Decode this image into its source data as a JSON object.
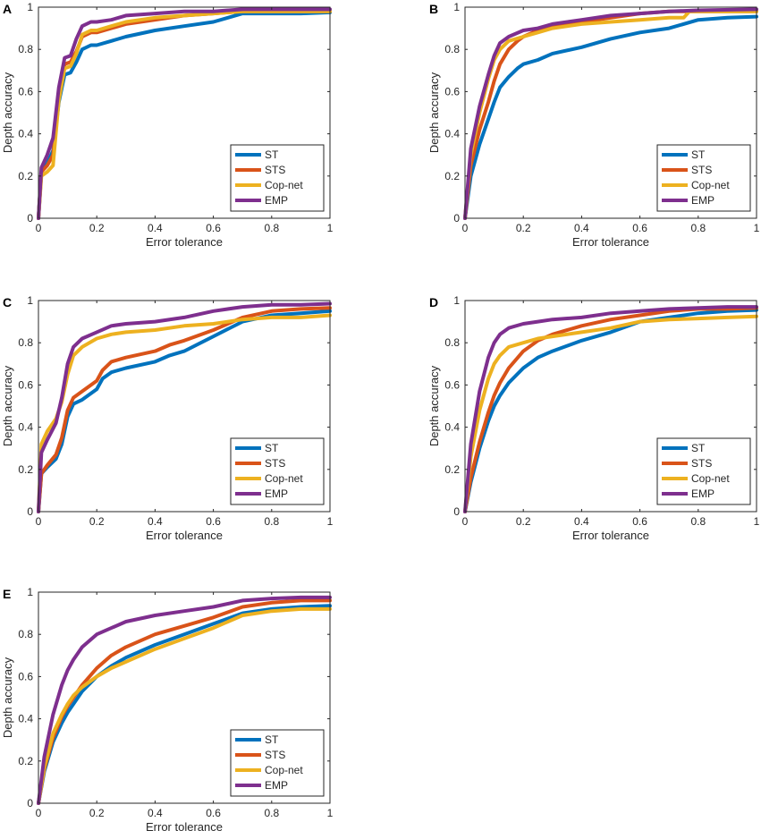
{
  "figure": {
    "description_labels": [
      "A",
      "B",
      "C",
      "D",
      "E"
    ]
  },
  "chart_data": [
    {
      "panel": "A",
      "type": "line",
      "xlabel": "Error tolerance",
      "ylabel": "Depth accuracy",
      "xlim": [
        0,
        1
      ],
      "ylim": [
        0,
        1
      ],
      "xticks": [
        "0",
        "0.2",
        "0.4",
        "0.6",
        "0.8",
        "1"
      ],
      "yticks": [
        "0",
        "0.2",
        "0.4",
        "0.6",
        "0.8",
        "1"
      ],
      "legend_position": "bottom-right",
      "series": [
        {
          "name": "ST",
          "color": "#0072BD",
          "x": [
            0,
            0.01,
            0.03,
            0.05,
            0.07,
            0.09,
            0.11,
            0.13,
            0.15,
            0.18,
            0.2,
            0.25,
            0.3,
            0.4,
            0.5,
            0.6,
            0.65,
            0.7,
            0.8,
            0.9,
            1
          ],
          "y": [
            0,
            0.22,
            0.26,
            0.32,
            0.55,
            0.68,
            0.69,
            0.74,
            0.8,
            0.82,
            0.82,
            0.84,
            0.86,
            0.89,
            0.91,
            0.93,
            0.95,
            0.97,
            0.97,
            0.97,
            0.975
          ]
        },
        {
          "name": "STS",
          "color": "#D95319",
          "x": [
            0,
            0.01,
            0.03,
            0.05,
            0.07,
            0.09,
            0.11,
            0.13,
            0.15,
            0.18,
            0.2,
            0.25,
            0.3,
            0.4,
            0.5,
            0.6,
            0.7,
            0.8,
            1
          ],
          "y": [
            0,
            0.22,
            0.25,
            0.3,
            0.58,
            0.73,
            0.74,
            0.79,
            0.86,
            0.88,
            0.88,
            0.9,
            0.92,
            0.94,
            0.96,
            0.97,
            0.98,
            0.98,
            0.98
          ]
        },
        {
          "name": "Cop-net",
          "color": "#EDB120",
          "x": [
            0,
            0.01,
            0.03,
            0.05,
            0.07,
            0.09,
            0.11,
            0.13,
            0.15,
            0.18,
            0.2,
            0.25,
            0.3,
            0.4,
            0.5,
            0.6,
            0.7,
            0.8,
            1
          ],
          "y": [
            0,
            0.2,
            0.22,
            0.25,
            0.56,
            0.71,
            0.72,
            0.78,
            0.87,
            0.89,
            0.89,
            0.91,
            0.93,
            0.95,
            0.96,
            0.97,
            0.98,
            0.98,
            0.98
          ]
        },
        {
          "name": "EMP",
          "color": "#7E2F8E",
          "x": [
            0,
            0.01,
            0.03,
            0.05,
            0.07,
            0.09,
            0.11,
            0.13,
            0.15,
            0.18,
            0.2,
            0.25,
            0.3,
            0.4,
            0.5,
            0.6,
            0.7,
            0.8,
            1
          ],
          "y": [
            0,
            0.24,
            0.3,
            0.38,
            0.62,
            0.76,
            0.77,
            0.85,
            0.91,
            0.93,
            0.93,
            0.94,
            0.96,
            0.97,
            0.98,
            0.98,
            0.99,
            0.99,
            0.99
          ]
        }
      ]
    },
    {
      "panel": "B",
      "type": "line",
      "xlabel": "Error tolerance",
      "ylabel": "Depth accuracy",
      "xlim": [
        0,
        1
      ],
      "ylim": [
        0,
        1
      ],
      "xticks": [
        "0",
        "0.2",
        "0.4",
        "0.6",
        "0.8",
        "1"
      ],
      "yticks": [
        "0",
        "0.2",
        "0.4",
        "0.6",
        "0.8",
        "1"
      ],
      "legend_position": "bottom-right",
      "series": [
        {
          "name": "ST",
          "color": "#0072BD",
          "x": [
            0,
            0.02,
            0.05,
            0.08,
            0.1,
            0.12,
            0.15,
            0.18,
            0.2,
            0.25,
            0.3,
            0.4,
            0.5,
            0.6,
            0.7,
            0.8,
            0.9,
            1
          ],
          "y": [
            0,
            0.2,
            0.35,
            0.47,
            0.55,
            0.62,
            0.67,
            0.71,
            0.73,
            0.75,
            0.78,
            0.81,
            0.85,
            0.88,
            0.9,
            0.94,
            0.95,
            0.955
          ]
        },
        {
          "name": "STS",
          "color": "#D95319",
          "x": [
            0,
            0.02,
            0.05,
            0.08,
            0.1,
            0.12,
            0.15,
            0.18,
            0.2,
            0.25,
            0.3,
            0.4,
            0.5,
            0.6,
            0.7,
            0.8,
            1
          ],
          "y": [
            0,
            0.25,
            0.42,
            0.55,
            0.65,
            0.73,
            0.8,
            0.84,
            0.86,
            0.89,
            0.91,
            0.93,
            0.95,
            0.97,
            0.98,
            0.98,
            0.98
          ]
        },
        {
          "name": "Cop-net",
          "color": "#EDB120",
          "x": [
            0,
            0.02,
            0.05,
            0.08,
            0.1,
            0.12,
            0.15,
            0.2,
            0.25,
            0.3,
            0.4,
            0.5,
            0.6,
            0.7,
            0.75,
            0.77,
            0.8,
            1
          ],
          "y": [
            0,
            0.3,
            0.5,
            0.66,
            0.75,
            0.8,
            0.84,
            0.86,
            0.88,
            0.9,
            0.92,
            0.93,
            0.94,
            0.95,
            0.95,
            0.98,
            0.98,
            0.98
          ]
        },
        {
          "name": "EMP",
          "color": "#7E2F8E",
          "x": [
            0,
            0.02,
            0.05,
            0.08,
            0.1,
            0.12,
            0.15,
            0.2,
            0.25,
            0.3,
            0.4,
            0.5,
            0.6,
            0.7,
            0.8,
            1
          ],
          "y": [
            0,
            0.33,
            0.53,
            0.68,
            0.77,
            0.83,
            0.86,
            0.89,
            0.9,
            0.92,
            0.94,
            0.96,
            0.97,
            0.98,
            0.985,
            0.99
          ]
        }
      ]
    },
    {
      "panel": "C",
      "type": "line",
      "xlabel": "Error tolerance",
      "ylabel": "Depth accuracy",
      "xlim": [
        0,
        1
      ],
      "ylim": [
        0,
        1
      ],
      "xticks": [
        "0",
        "0.2",
        "0.4",
        "0.6",
        "0.8",
        "1"
      ],
      "yticks": [
        "0",
        "0.2",
        "0.4",
        "0.6",
        "0.8",
        "1"
      ],
      "legend_position": "bottom-right",
      "series": [
        {
          "name": "ST",
          "color": "#0072BD",
          "x": [
            0,
            0.01,
            0.03,
            0.06,
            0.08,
            0.1,
            0.12,
            0.15,
            0.2,
            0.22,
            0.25,
            0.3,
            0.4,
            0.45,
            0.5,
            0.6,
            0.7,
            0.8,
            0.9,
            1
          ],
          "y": [
            0,
            0.18,
            0.21,
            0.25,
            0.32,
            0.45,
            0.51,
            0.53,
            0.58,
            0.63,
            0.66,
            0.68,
            0.71,
            0.74,
            0.76,
            0.83,
            0.9,
            0.93,
            0.94,
            0.95
          ]
        },
        {
          "name": "STS",
          "color": "#D95319",
          "x": [
            0,
            0.01,
            0.03,
            0.06,
            0.08,
            0.1,
            0.12,
            0.15,
            0.2,
            0.22,
            0.25,
            0.3,
            0.4,
            0.45,
            0.5,
            0.6,
            0.7,
            0.8,
            0.9,
            1
          ],
          "y": [
            0,
            0.18,
            0.22,
            0.27,
            0.35,
            0.48,
            0.54,
            0.57,
            0.62,
            0.67,
            0.71,
            0.73,
            0.76,
            0.79,
            0.81,
            0.86,
            0.92,
            0.95,
            0.96,
            0.965
          ]
        },
        {
          "name": "Cop-net",
          "color": "#EDB120",
          "x": [
            0,
            0.01,
            0.03,
            0.06,
            0.08,
            0.1,
            0.12,
            0.15,
            0.2,
            0.25,
            0.3,
            0.4,
            0.5,
            0.6,
            0.7,
            0.8,
            0.9,
            1
          ],
          "y": [
            0,
            0.32,
            0.38,
            0.44,
            0.52,
            0.65,
            0.74,
            0.78,
            0.82,
            0.84,
            0.85,
            0.86,
            0.88,
            0.89,
            0.91,
            0.92,
            0.92,
            0.93
          ]
        },
        {
          "name": "EMP",
          "color": "#7E2F8E",
          "x": [
            0,
            0.01,
            0.03,
            0.06,
            0.08,
            0.1,
            0.12,
            0.15,
            0.2,
            0.25,
            0.3,
            0.4,
            0.5,
            0.6,
            0.7,
            0.8,
            0.9,
            1
          ],
          "y": [
            0,
            0.28,
            0.34,
            0.42,
            0.54,
            0.7,
            0.78,
            0.82,
            0.85,
            0.88,
            0.89,
            0.9,
            0.92,
            0.95,
            0.97,
            0.98,
            0.98,
            0.985
          ]
        }
      ]
    },
    {
      "panel": "D",
      "type": "line",
      "xlabel": "Error tolerance",
      "ylabel": "Depth accuracy",
      "xlim": [
        0,
        1
      ],
      "ylim": [
        0,
        1
      ],
      "xticks": [
        "0",
        "0.2",
        "0.4",
        "0.6",
        "0.8",
        "1"
      ],
      "yticks": [
        "0",
        "0.2",
        "0.4",
        "0.6",
        "0.8",
        "1"
      ],
      "legend_position": "bottom-right",
      "series": [
        {
          "name": "ST",
          "color": "#0072BD",
          "x": [
            0,
            0.02,
            0.05,
            0.08,
            0.1,
            0.12,
            0.15,
            0.2,
            0.25,
            0.3,
            0.4,
            0.5,
            0.6,
            0.7,
            0.8,
            0.9,
            1
          ],
          "y": [
            0,
            0.14,
            0.3,
            0.43,
            0.5,
            0.55,
            0.61,
            0.68,
            0.73,
            0.76,
            0.81,
            0.85,
            0.9,
            0.92,
            0.94,
            0.95,
            0.955
          ]
        },
        {
          "name": "STS",
          "color": "#D95319",
          "x": [
            0,
            0.02,
            0.05,
            0.08,
            0.1,
            0.12,
            0.15,
            0.2,
            0.25,
            0.3,
            0.4,
            0.5,
            0.6,
            0.7,
            0.8,
            0.9,
            1
          ],
          "y": [
            0,
            0.16,
            0.33,
            0.47,
            0.55,
            0.61,
            0.68,
            0.76,
            0.81,
            0.84,
            0.88,
            0.91,
            0.93,
            0.95,
            0.96,
            0.96,
            0.965
          ]
        },
        {
          "name": "Cop-net",
          "color": "#EDB120",
          "x": [
            0,
            0.02,
            0.05,
            0.08,
            0.1,
            0.12,
            0.15,
            0.2,
            0.25,
            0.3,
            0.4,
            0.5,
            0.6,
            0.7,
            0.8,
            0.9,
            1
          ],
          "y": [
            0,
            0.26,
            0.48,
            0.63,
            0.7,
            0.74,
            0.78,
            0.8,
            0.82,
            0.83,
            0.85,
            0.87,
            0.9,
            0.91,
            0.915,
            0.92,
            0.925
          ]
        },
        {
          "name": "EMP",
          "color": "#7E2F8E",
          "x": [
            0,
            0.02,
            0.05,
            0.08,
            0.1,
            0.12,
            0.15,
            0.2,
            0.25,
            0.3,
            0.4,
            0.5,
            0.6,
            0.7,
            0.8,
            0.9,
            1
          ],
          "y": [
            0,
            0.32,
            0.57,
            0.73,
            0.8,
            0.84,
            0.87,
            0.89,
            0.9,
            0.91,
            0.92,
            0.94,
            0.95,
            0.96,
            0.965,
            0.97,
            0.97
          ]
        }
      ]
    },
    {
      "panel": "E",
      "type": "line",
      "xlabel": "Error tolerance",
      "ylabel": "Depth accuracy",
      "xlim": [
        0,
        1
      ],
      "ylim": [
        0,
        1
      ],
      "xticks": [
        "0",
        "0.2",
        "0.4",
        "0.6",
        "0.8",
        "1"
      ],
      "yticks": [
        "0",
        "0.2",
        "0.4",
        "0.6",
        "0.8",
        "1"
      ],
      "legend_position": "bottom-right",
      "series": [
        {
          "name": "ST",
          "color": "#0072BD",
          "x": [
            0,
            0.02,
            0.05,
            0.08,
            0.1,
            0.12,
            0.15,
            0.2,
            0.25,
            0.3,
            0.4,
            0.5,
            0.6,
            0.7,
            0.8,
            0.9,
            1
          ],
          "y": [
            0,
            0.15,
            0.29,
            0.38,
            0.43,
            0.47,
            0.53,
            0.6,
            0.65,
            0.69,
            0.75,
            0.8,
            0.85,
            0.9,
            0.92,
            0.93,
            0.935
          ]
        },
        {
          "name": "STS",
          "color": "#D95319",
          "x": [
            0,
            0.02,
            0.05,
            0.08,
            0.1,
            0.12,
            0.15,
            0.2,
            0.25,
            0.3,
            0.4,
            0.5,
            0.6,
            0.7,
            0.8,
            0.9,
            1
          ],
          "y": [
            0,
            0.16,
            0.31,
            0.41,
            0.46,
            0.5,
            0.56,
            0.64,
            0.7,
            0.74,
            0.8,
            0.84,
            0.88,
            0.93,
            0.95,
            0.96,
            0.96
          ]
        },
        {
          "name": "Cop-net",
          "color": "#EDB120",
          "x": [
            0,
            0.02,
            0.05,
            0.08,
            0.1,
            0.12,
            0.15,
            0.2,
            0.25,
            0.3,
            0.4,
            0.5,
            0.6,
            0.7,
            0.8,
            0.9,
            1
          ],
          "y": [
            0,
            0.17,
            0.33,
            0.42,
            0.47,
            0.51,
            0.55,
            0.6,
            0.64,
            0.67,
            0.73,
            0.78,
            0.83,
            0.89,
            0.91,
            0.92,
            0.92
          ]
        },
        {
          "name": "EMP",
          "color": "#7E2F8E",
          "x": [
            0,
            0.02,
            0.05,
            0.08,
            0.1,
            0.12,
            0.15,
            0.2,
            0.25,
            0.3,
            0.4,
            0.5,
            0.6,
            0.7,
            0.8,
            0.9,
            1
          ],
          "y": [
            0,
            0.22,
            0.42,
            0.56,
            0.63,
            0.68,
            0.74,
            0.8,
            0.83,
            0.86,
            0.89,
            0.91,
            0.93,
            0.96,
            0.97,
            0.975,
            0.975
          ]
        }
      ]
    }
  ]
}
